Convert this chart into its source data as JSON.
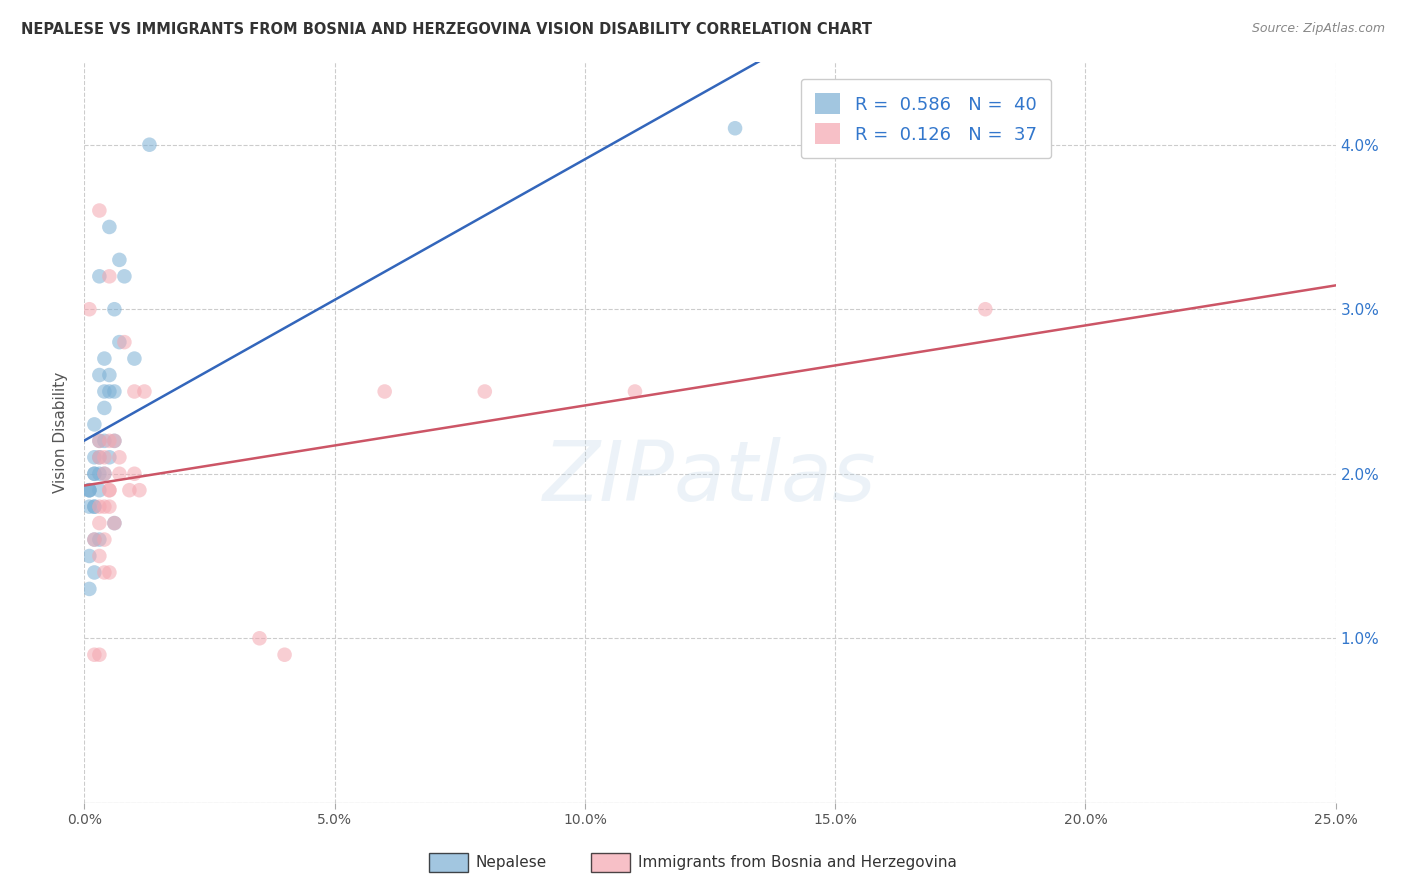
{
  "title": "NEPALESE VS IMMIGRANTS FROM BOSNIA AND HERZEGOVINA VISION DISABILITY CORRELATION CHART",
  "source": "Source: ZipAtlas.com",
  "ylabel": "Vision Disability",
  "y_ticks": [
    0.0,
    0.01,
    0.02,
    0.03,
    0.04
  ],
  "y_tick_labels": [
    "",
    "1.0%",
    "2.0%",
    "3.0%",
    "4.0%"
  ],
  "xlim": [
    0.0,
    0.25
  ],
  "ylim": [
    0.0,
    0.045
  ],
  "nepalese_x": [
    0.005,
    0.007,
    0.01,
    0.013,
    0.003,
    0.006,
    0.008,
    0.004,
    0.005,
    0.007,
    0.003,
    0.004,
    0.005,
    0.006,
    0.002,
    0.003,
    0.004,
    0.005,
    0.006,
    0.002,
    0.003,
    0.004,
    0.003,
    0.002,
    0.001,
    0.002,
    0.003,
    0.004,
    0.002,
    0.001,
    0.001,
    0.002,
    0.003,
    0.002,
    0.001,
    0.002,
    0.001,
    0.001,
    0.006,
    0.13
  ],
  "nepalese_y": [
    0.035,
    0.033,
    0.027,
    0.04,
    0.032,
    0.03,
    0.032,
    0.027,
    0.026,
    0.028,
    0.026,
    0.025,
    0.025,
    0.025,
    0.023,
    0.022,
    0.022,
    0.021,
    0.022,
    0.021,
    0.021,
    0.02,
    0.02,
    0.02,
    0.019,
    0.02,
    0.019,
    0.024,
    0.018,
    0.019,
    0.019,
    0.018,
    0.016,
    0.016,
    0.015,
    0.014,
    0.013,
    0.018,
    0.017,
    0.041
  ],
  "bosnia_x": [
    0.003,
    0.005,
    0.008,
    0.01,
    0.012,
    0.005,
    0.003,
    0.004,
    0.006,
    0.007,
    0.003,
    0.004,
    0.005,
    0.007,
    0.009,
    0.01,
    0.011,
    0.003,
    0.004,
    0.005,
    0.003,
    0.004,
    0.005,
    0.006,
    0.002,
    0.003,
    0.004,
    0.005,
    0.002,
    0.003,
    0.001,
    0.18,
    0.11,
    0.06,
    0.08,
    0.035,
    0.04
  ],
  "bosnia_y": [
    0.036,
    0.032,
    0.028,
    0.025,
    0.025,
    0.022,
    0.022,
    0.021,
    0.022,
    0.021,
    0.021,
    0.02,
    0.019,
    0.02,
    0.019,
    0.02,
    0.019,
    0.018,
    0.018,
    0.019,
    0.017,
    0.016,
    0.018,
    0.017,
    0.016,
    0.015,
    0.014,
    0.014,
    0.009,
    0.009,
    0.03,
    0.03,
    0.025,
    0.025,
    0.025,
    0.01,
    0.009
  ],
  "dot_size": 110,
  "nepalese_color": "#7bafd4",
  "bosnia_color": "#f4a6b0",
  "nepalese_alpha": 0.55,
  "bosnia_alpha": 0.55,
  "trend_blue_color": "#3366bb",
  "trend_pink_color": "#cc5566",
  "watermark": "ZIPatlas",
  "background_color": "#ffffff",
  "grid_color": "#cccccc",
  "legend_label_1": "R =  0.586   N =  40",
  "legend_label_2": "R =  0.126   N =  37",
  "legend_text_color": "#3377cc",
  "bottom_label_1": "Nepalese",
  "bottom_label_2": "Immigrants from Bosnia and Herzegovina"
}
